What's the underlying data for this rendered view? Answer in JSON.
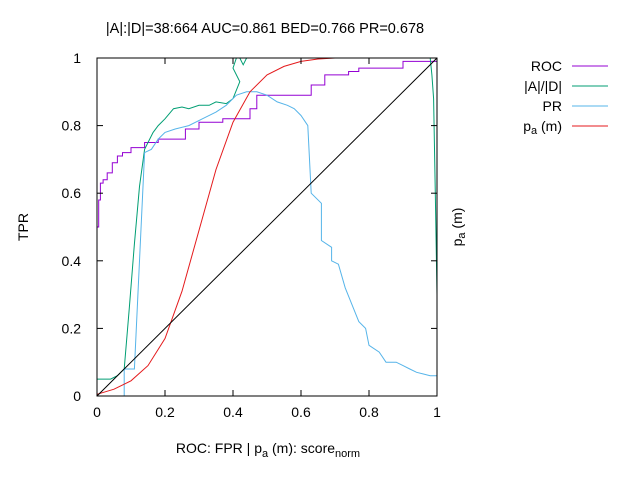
{
  "chart_data": {
    "type": "line",
    "title": "|A|:|D|=38:664 AUC=0.861 BED=0.766 PR=0.678",
    "xlabel": "ROC: FPR | p",
    "xlabel_sub_a": "a",
    "xlabel_mid": " (m): score",
    "xlabel_sub_norm": "norm",
    "ylabel": "TPR",
    "y2label": "p",
    "y2label_sub": "a",
    "y2label_tail": " (m)",
    "xlim": [
      0,
      1
    ],
    "ylim": [
      0,
      1
    ],
    "xticks": [
      {
        "v": 0,
        "label": "0"
      },
      {
        "v": 0.2,
        "label": "0.2"
      },
      {
        "v": 0.4,
        "label": "0.4"
      },
      {
        "v": 0.6,
        "label": "0.6"
      },
      {
        "v": 0.8,
        "label": "0.8"
      },
      {
        "v": 1,
        "label": "1"
      }
    ],
    "yticks": [
      {
        "v": 0,
        "label": "0"
      },
      {
        "v": 0.2,
        "label": "0.2"
      },
      {
        "v": 0.4,
        "label": "0.4"
      },
      {
        "v": 0.6,
        "label": "0.6"
      },
      {
        "v": 0.8,
        "label": "0.8"
      },
      {
        "v": 1,
        "label": "1"
      }
    ],
    "series": [
      {
        "name": "ROC",
        "legend": "ROC",
        "color": "#9400d3",
        "points": [
          [
            0,
            0.4
          ],
          [
            0,
            0.5
          ],
          [
            0.005,
            0.5
          ],
          [
            0.005,
            0.58
          ],
          [
            0.01,
            0.58
          ],
          [
            0.01,
            0.63
          ],
          [
            0.018,
            0.63
          ],
          [
            0.018,
            0.64
          ],
          [
            0.03,
            0.64
          ],
          [
            0.03,
            0.66
          ],
          [
            0.045,
            0.66
          ],
          [
            0.045,
            0.69
          ],
          [
            0.06,
            0.69
          ],
          [
            0.06,
            0.71
          ],
          [
            0.075,
            0.71
          ],
          [
            0.075,
            0.72
          ],
          [
            0.1,
            0.72
          ],
          [
            0.1,
            0.735
          ],
          [
            0.14,
            0.735
          ],
          [
            0.14,
            0.75
          ],
          [
            0.18,
            0.75
          ],
          [
            0.18,
            0.76
          ],
          [
            0.26,
            0.76
          ],
          [
            0.26,
            0.79
          ],
          [
            0.3,
            0.79
          ],
          [
            0.3,
            0.81
          ],
          [
            0.37,
            0.81
          ],
          [
            0.37,
            0.82
          ],
          [
            0.45,
            0.82
          ],
          [
            0.45,
            0.85
          ],
          [
            0.47,
            0.85
          ],
          [
            0.47,
            0.89
          ],
          [
            0.63,
            0.89
          ],
          [
            0.63,
            0.92
          ],
          [
            0.67,
            0.92
          ],
          [
            0.67,
            0.95
          ],
          [
            0.74,
            0.95
          ],
          [
            0.74,
            0.96
          ],
          [
            0.77,
            0.96
          ],
          [
            0.77,
            0.97
          ],
          [
            0.9,
            0.97
          ],
          [
            0.9,
            0.99
          ],
          [
            1,
            0.99
          ],
          [
            1,
            1
          ]
        ]
      },
      {
        "name": "A-over-D",
        "legend": "|A|/|D|",
        "color": "#009e73",
        "points": [
          [
            0,
            0.05
          ],
          [
            0.04,
            0.05
          ],
          [
            0.06,
            0.06
          ],
          [
            0.07,
            0.07
          ],
          [
            0.08,
            0.08
          ],
          [
            0.095,
            0.26
          ],
          [
            0.11,
            0.45
          ],
          [
            0.125,
            0.62
          ],
          [
            0.14,
            0.73
          ],
          [
            0.165,
            0.78
          ],
          [
            0.18,
            0.8
          ],
          [
            0.2,
            0.82
          ],
          [
            0.225,
            0.85
          ],
          [
            0.25,
            0.855
          ],
          [
            0.27,
            0.85
          ],
          [
            0.3,
            0.86
          ],
          [
            0.33,
            0.86
          ],
          [
            0.35,
            0.87
          ],
          [
            0.38,
            0.865
          ],
          [
            0.4,
            0.88
          ],
          [
            0.42,
            0.93
          ],
          [
            0.4,
            0.97
          ],
          [
            0.41,
            1.0
          ],
          [
            0.42,
            1.0
          ],
          [
            0.43,
            0.98
          ],
          [
            0.44,
            1.0
          ],
          [
            0.98,
            1.0
          ],
          [
            0.985,
            0.95
          ],
          [
            0.99,
            0.88
          ],
          [
            0.995,
            0.6
          ],
          [
            1,
            0.3
          ],
          [
            1,
            0.0
          ]
        ]
      },
      {
        "name": "PR",
        "legend": "PR",
        "color": "#56b4e9",
        "points": [
          [
            0,
            0.0
          ],
          [
            0.08,
            0.0
          ],
          [
            0.08,
            0.08
          ],
          [
            0.11,
            0.08
          ],
          [
            0.14,
            0.72
          ],
          [
            0.16,
            0.73
          ],
          [
            0.18,
            0.76
          ],
          [
            0.2,
            0.78
          ],
          [
            0.23,
            0.79
          ],
          [
            0.27,
            0.8
          ],
          [
            0.31,
            0.82
          ],
          [
            0.35,
            0.84
          ],
          [
            0.38,
            0.86
          ],
          [
            0.41,
            0.89
          ],
          [
            0.44,
            0.9
          ],
          [
            0.47,
            0.9
          ],
          [
            0.5,
            0.89
          ],
          [
            0.53,
            0.87
          ],
          [
            0.56,
            0.86
          ],
          [
            0.58,
            0.85
          ],
          [
            0.6,
            0.83
          ],
          [
            0.62,
            0.8
          ],
          [
            0.63,
            0.6
          ],
          [
            0.66,
            0.57
          ],
          [
            0.66,
            0.46
          ],
          [
            0.69,
            0.44
          ],
          [
            0.69,
            0.4
          ],
          [
            0.71,
            0.39
          ],
          [
            0.73,
            0.32
          ],
          [
            0.75,
            0.27
          ],
          [
            0.77,
            0.22
          ],
          [
            0.79,
            0.2
          ],
          [
            0.8,
            0.15
          ],
          [
            0.83,
            0.13
          ],
          [
            0.85,
            0.1
          ],
          [
            0.88,
            0.1
          ],
          [
            0.9,
            0.09
          ],
          [
            0.92,
            0.08
          ],
          [
            0.94,
            0.07
          ],
          [
            0.96,
            0.065
          ],
          [
            0.98,
            0.06
          ],
          [
            1,
            0.06
          ]
        ]
      },
      {
        "name": "p-a-m",
        "legend": "p",
        "legend_sub": "a",
        "legend_tail": " (m)",
        "color": "#e41a1c",
        "points": [
          [
            0,
            0.005
          ],
          [
            0.05,
            0.02
          ],
          [
            0.1,
            0.045
          ],
          [
            0.15,
            0.09
          ],
          [
            0.2,
            0.17
          ],
          [
            0.25,
            0.31
          ],
          [
            0.3,
            0.49
          ],
          [
            0.35,
            0.67
          ],
          [
            0.4,
            0.81
          ],
          [
            0.45,
            0.9
          ],
          [
            0.5,
            0.95
          ],
          [
            0.55,
            0.975
          ],
          [
            0.6,
            0.99
          ],
          [
            0.65,
            0.997
          ],
          [
            0.7,
            1.0
          ],
          [
            0.72,
            1.0
          ]
        ]
      },
      {
        "name": "diagonal",
        "legend": null,
        "color": "#000000",
        "points": [
          [
            0,
            0
          ],
          [
            1,
            1
          ]
        ]
      }
    ]
  }
}
